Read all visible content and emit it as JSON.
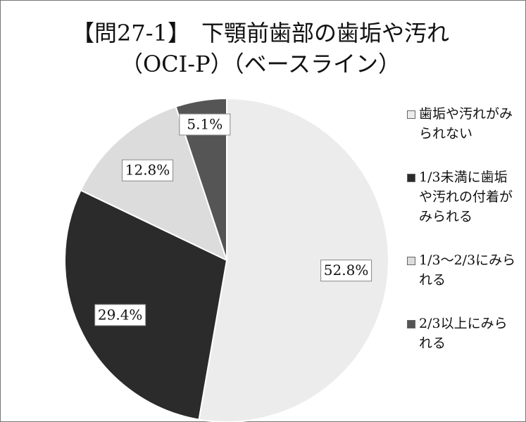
{
  "chart_data": {
    "type": "pie",
    "title": [
      "【問27-1】　下顎前歯部の歯垢や汚れ",
      "（OCI-P）（ベースライン）"
    ],
    "categories": [
      "歯垢や汚れがみられない",
      "1/3未満に歯垢や汚れの付着がみられる",
      "1/3～2/3にみられる",
      "2/3以上にみられる"
    ],
    "values": [
      52.8,
      29.4,
      12.8,
      5.1
    ],
    "value_labels": [
      "52.8%",
      "29.4%",
      "12.8%",
      "5.1%"
    ],
    "colors": [
      "#ececec",
      "#2b2b2b",
      "#dcdcdc",
      "#555555"
    ],
    "legend": "right"
  }
}
